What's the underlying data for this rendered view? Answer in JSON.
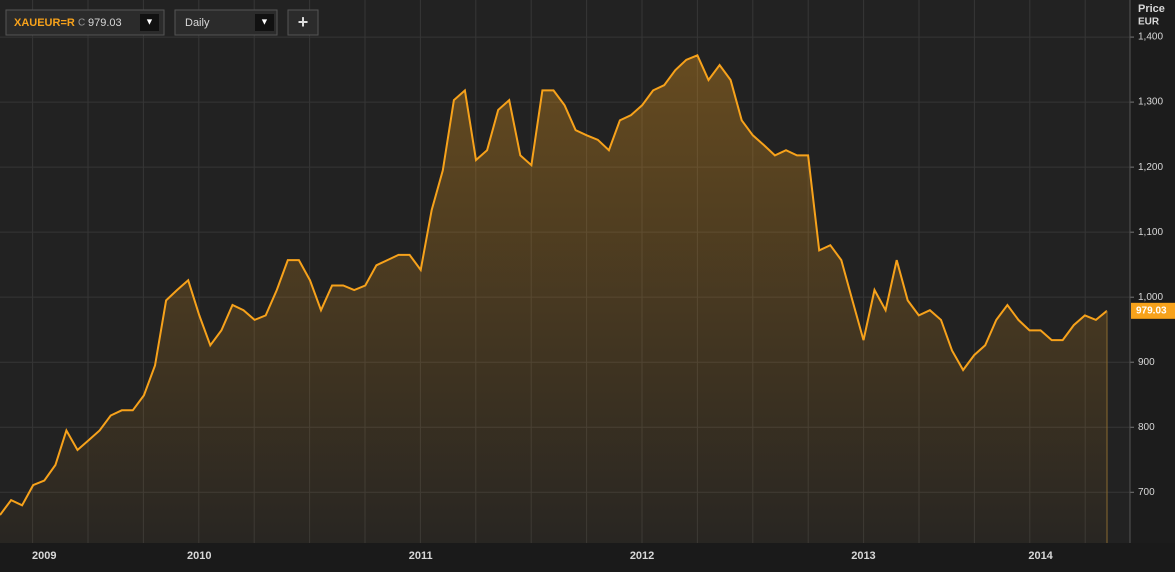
{
  "toolbar": {
    "symbol": "XAUEUR=R",
    "close_prefix": "C",
    "close": "979.03",
    "interval": "Daily",
    "dropdown": "▼",
    "add": "+"
  },
  "chart_data": {
    "type": "line",
    "y_axis_title": "Price",
    "y_axis_unit": "EUR",
    "categories": [
      null,
      null,
      null,
      null,
      "2009",
      null,
      null,
      null,
      null,
      null,
      null,
      null,
      null,
      null,
      null,
      null,
      null,
      null,
      "2010",
      null,
      null,
      null,
      null,
      null,
      null,
      null,
      null,
      null,
      null,
      null,
      null,
      null,
      null,
      null,
      null,
      null,
      null,
      null,
      "2011",
      null,
      null,
      null,
      null,
      null,
      null,
      null,
      null,
      null,
      null,
      null,
      null,
      null,
      null,
      null,
      null,
      null,
      null,
      null,
      "2012",
      null,
      null,
      null,
      null,
      null,
      null,
      null,
      null,
      null,
      null,
      null,
      null,
      null,
      null,
      null,
      null,
      null,
      null,
      null,
      "2013",
      null,
      null,
      null,
      null,
      null,
      null,
      null,
      null,
      null,
      null,
      null,
      null,
      null,
      null,
      null,
      "2014",
      null,
      null,
      null,
      null,
      null,
      null
    ],
    "series": [
      {
        "name": "XAUEUR=R",
        "color": "#f7a21b",
        "values": [
          665,
          688,
          680,
          711,
          718,
          742,
          795,
          765,
          780,
          795,
          818,
          826,
          826,
          849,
          895,
          995,
          1011,
          1026,
          972,
          926,
          949,
          988,
          980,
          965,
          972,
          1011,
          1057,
          1057,
          1026,
          980,
          1018,
          1018,
          1011,
          1018,
          1049,
          1057,
          1065,
          1065,
          1042,
          1134,
          1195,
          1303,
          1318,
          1211,
          1226,
          1288,
          1303,
          1218,
          1203,
          1318,
          1318,
          1295,
          1257,
          1249,
          1242,
          1226,
          1272,
          1280,
          1295,
          1318,
          1326,
          1349,
          1365,
          1372,
          1334,
          1357,
          1334,
          1272,
          1249,
          1234,
          1218,
          1226,
          1218,
          1218,
          1072,
          1080,
          1057,
          995,
          934,
          1011,
          980,
          1057,
          995,
          972,
          980,
          965,
          918,
          888,
          911,
          926,
          965,
          988,
          965,
          949,
          949,
          934,
          934,
          957,
          972,
          965,
          979.03
        ]
      }
    ],
    "ylim": [
      622,
      1457
    ],
    "yticks": [
      700,
      800,
      900,
      {
        "value": 1000,
        "label": "1,000"
      },
      {
        "value": 1100,
        "label": "1,100"
      },
      {
        "value": 1200,
        "label": "1,200"
      },
      {
        "value": 1300,
        "label": "1,300"
      },
      {
        "value": 1400,
        "label": "1,400"
      }
    ],
    "grid": true
  }
}
